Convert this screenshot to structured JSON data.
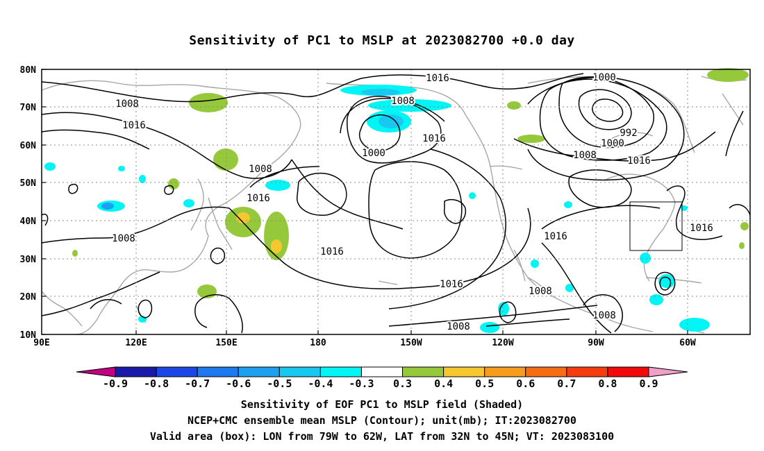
{
  "title": "Sensitivity of PC1 to MSLP at 2023082700 +0.0 day",
  "lat_labels": [
    "80N",
    "70N",
    "60N",
    "50N",
    "40N",
    "30N",
    "20N",
    "10N"
  ],
  "lon_labels": [
    "90E",
    "120E",
    "150E",
    "180",
    "150W",
    "120W",
    "90W",
    "60W"
  ],
  "contour_labels": [
    "1016",
    "1000",
    "1008",
    "1016",
    "1008",
    "1016",
    "1008",
    "1000",
    "1016",
    "1008",
    "992",
    "1000",
    "1008",
    "1016",
    "1016",
    "1008",
    "1016",
    "1016",
    "1016",
    "1008",
    "1008",
    "1008"
  ],
  "colorbar": {
    "labels": [
      "-0.9",
      "-0.8",
      "-0.7",
      "-0.6",
      "-0.5",
      "-0.4",
      "-0.3",
      "0.3",
      "0.4",
      "0.5",
      "0.6",
      "0.7",
      "0.8",
      "0.9"
    ],
    "colors": [
      "#c00080",
      "#1a1aa8",
      "#1e46e6",
      "#1e78ee",
      "#1ea0f0",
      "#19c8f0",
      "#00f5f5",
      "#ffffff",
      "#96c83c",
      "#f5c832",
      "#f59b1e",
      "#f56e14",
      "#f53c0f",
      "#f00a0a",
      "#f0a0c8"
    ]
  },
  "valid_area_box": {
    "lon_west": "79W",
    "lon_east": "62W",
    "lat_south": "32N",
    "lat_north": "45N"
  },
  "captions": {
    "line1": "Sensitivity of EOF PC1 to MSLP field (Shaded)",
    "line2": "NCEP+CMC ensemble mean MSLP (Contour); unit(mb); IT:2023082700",
    "line3": "Valid area (box): LON from 79W to 62W, LAT from 32N to 45N; VT: 2023083100"
  }
}
